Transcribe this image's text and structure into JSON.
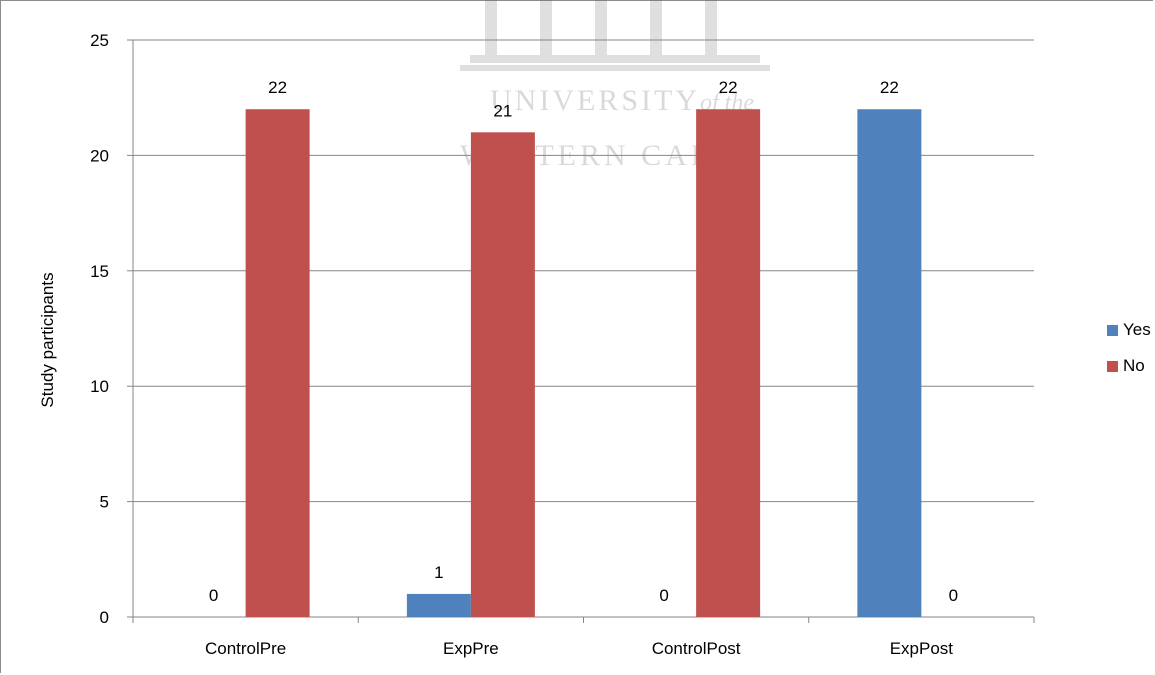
{
  "watermark": {
    "line1": "UNIVERSITY",
    "line1_italic": "of the",
    "line2": "WESTERN CAPE"
  },
  "chart_data": {
    "type": "bar",
    "categories": [
      "ControlPre",
      "ExpPre",
      "ControlPost",
      "ExpPost"
    ],
    "series": [
      {
        "name": "Yes",
        "values": [
          0,
          1,
          0,
          22
        ],
        "color": "#4f81bd"
      },
      {
        "name": "No",
        "values": [
          22,
          21,
          22,
          0
        ],
        "color": "#c0504d"
      }
    ],
    "title": "",
    "xlabel": "",
    "ylabel": "Study participants",
    "ylim": [
      0,
      25
    ],
    "yticks": [
      0,
      5,
      10,
      15,
      20,
      25
    ],
    "grid": true,
    "legend_position": "right"
  }
}
